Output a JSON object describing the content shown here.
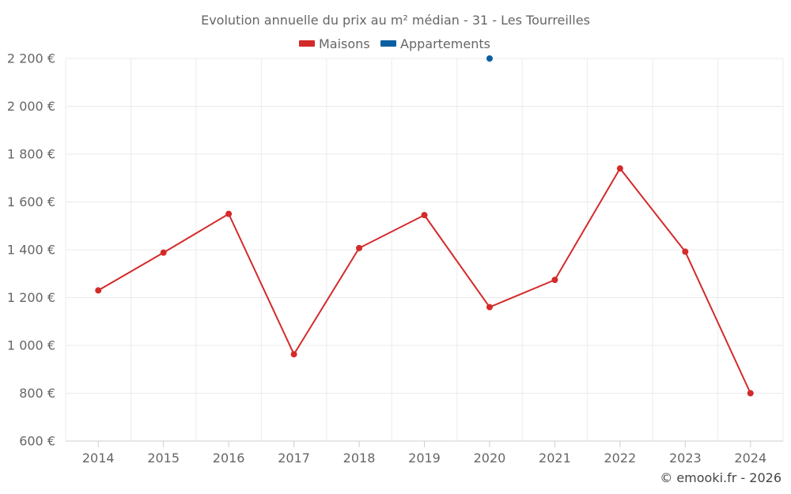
{
  "chart_data": {
    "type": "line",
    "title": "Evolution annuelle du prix au m² médian - 31 - Les Tourreilles",
    "categories": [
      "2014",
      "2015",
      "2016",
      "2017",
      "2018",
      "2019",
      "2020",
      "2021",
      "2022",
      "2023",
      "2024"
    ],
    "series": [
      {
        "name": "Maisons",
        "color": "#d42a2a",
        "values": [
          1230,
          1388,
          1550,
          963,
          1407,
          1545,
          1160,
          1274,
          1740,
          1392,
          800
        ]
      },
      {
        "name": "Appartements",
        "color": "#0b5fa0",
        "values": [
          null,
          null,
          null,
          null,
          null,
          null,
          2200,
          null,
          null,
          null,
          null
        ]
      }
    ],
    "ylim": [
      600,
      2200
    ],
    "yticks": [
      600,
      800,
      1000,
      1200,
      1400,
      1600,
      1800,
      2000,
      2200
    ],
    "ytick_labels": [
      "600 €",
      "800 €",
      "1 000 €",
      "1 200 €",
      "1 400 €",
      "1 600 €",
      "1 800 €",
      "2 000 €",
      "2 200 €"
    ],
    "xlabel": "",
    "ylabel": "",
    "grid": true,
    "legend_position": "top-center"
  },
  "credit": "© emooki.fr - 2026"
}
